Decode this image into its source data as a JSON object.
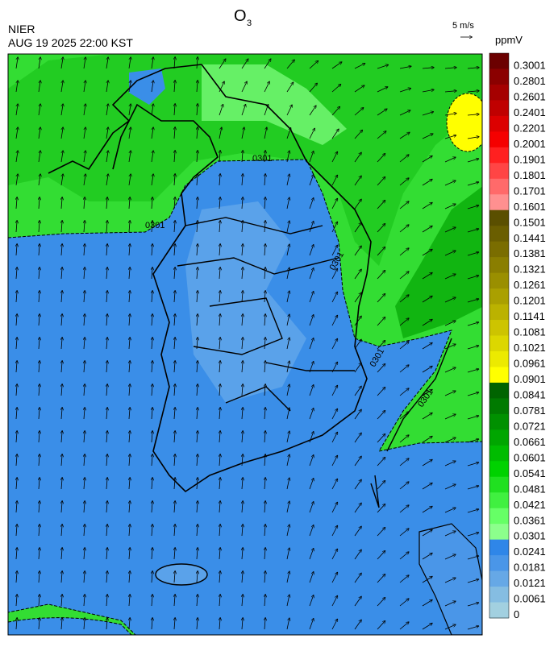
{
  "header": {
    "title": {
      "text": "O",
      "subscript": "3"
    },
    "source": "NIER",
    "datetime": "AUG 19 2025 22:00 KST",
    "wind_scale": "5 m/s"
  },
  "legend": {
    "unit": "ppmV",
    "labels": [
      "0.3001",
      "0.2801",
      "0.2601",
      "0.2401",
      "0.2201",
      "0.2001",
      "0.1901",
      "0.1801",
      "0.1701",
      "0.1601",
      "0.1501",
      "0.1441",
      "0.1381",
      "0.1321",
      "0.1261",
      "0.1201",
      "0.1141",
      "0.1081",
      "0.1021",
      "0.0961",
      "0.0901",
      "0.0841",
      "0.0781",
      "0.0721",
      "0.0661",
      "0.0601",
      "0.0541",
      "0.0481",
      "0.0421",
      "0.0361",
      "0.0301",
      "0.0241",
      "0.0181",
      "0.0121",
      "0.0061",
      "0"
    ],
    "colors": [
      "#6b0000",
      "#8b0000",
      "#a50000",
      "#c00000",
      "#dc0000",
      "#f50000",
      "#ff2020",
      "#ff4545",
      "#ff6a6a",
      "#ff9090",
      "#5a4f00",
      "#6a5e00",
      "#7a6d00",
      "#8a7e00",
      "#9a8f00",
      "#aaa000",
      "#bbb200",
      "#cdc400",
      "#dcd700",
      "#ecea00",
      "#ffff00",
      "#006400",
      "#007a00",
      "#009000",
      "#00a600",
      "#00bc00",
      "#00d200",
      "#20e020",
      "#40f040",
      "#66ff66",
      "#8cff8c",
      "#2f86e8",
      "#4a96e8",
      "#66a8e6",
      "#85bde2",
      "#a2d0e0"
    ]
  },
  "map": {
    "contour_labels": [
      "0301",
      "0301",
      "0301",
      "0301",
      "0301"
    ]
  }
}
